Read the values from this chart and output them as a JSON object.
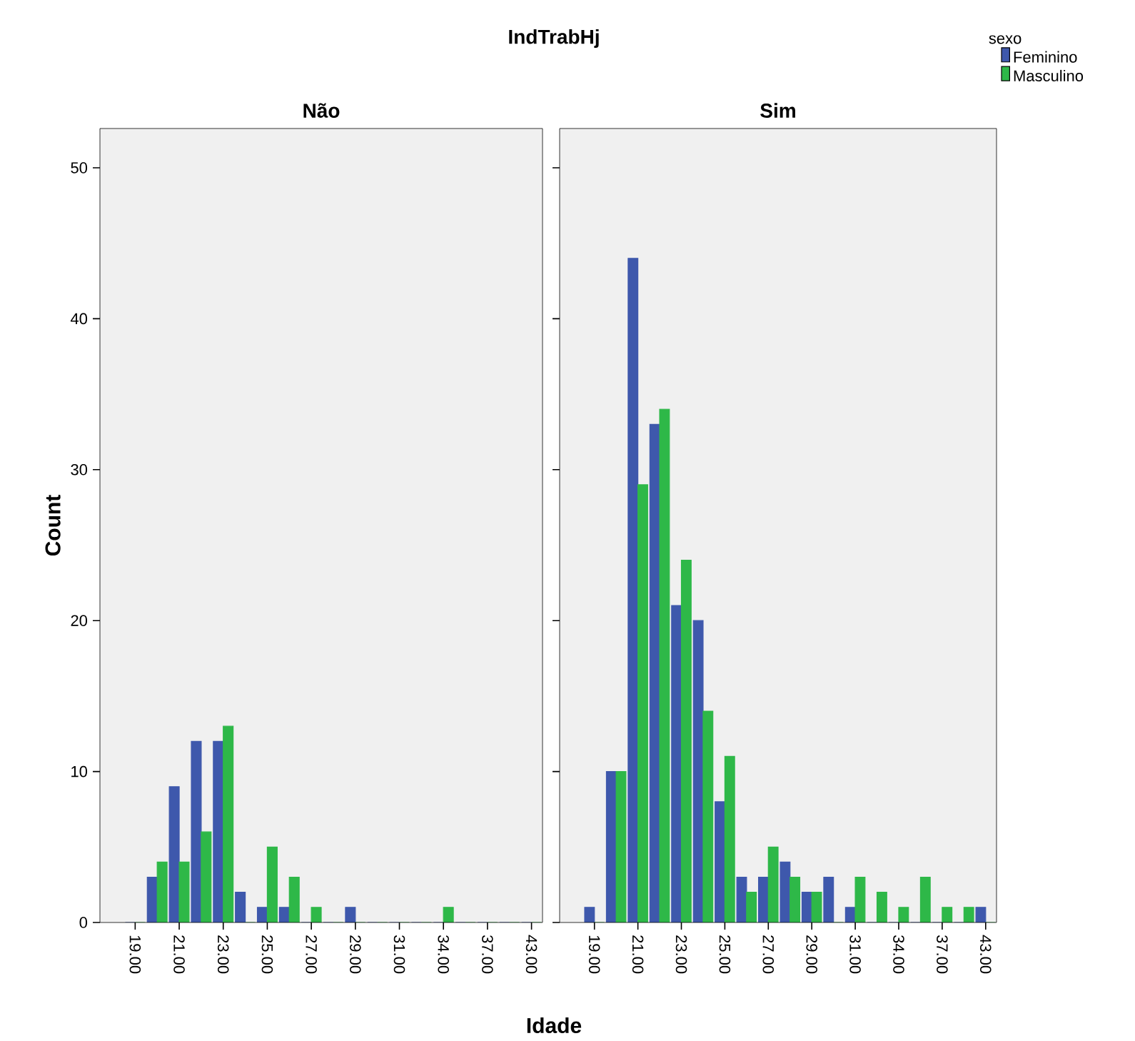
{
  "chart_data": [
    {
      "type": "bar",
      "title": "Não",
      "ylabel": "Count",
      "xlabel": "Idade",
      "annotations": [
        "IndTrabHj"
      ],
      "categories": [
        "19.00",
        null,
        "21.00",
        null,
        "23.00",
        null,
        "25.00",
        null,
        "27.00",
        null,
        "29.00",
        null,
        "31.00",
        null,
        "34.00",
        null,
        "37.00",
        null,
        "43.00"
      ],
      "series": [
        {
          "color": "#3e58ac",
          "values": [
            0,
            3,
            9,
            12,
            12,
            2,
            1,
            1,
            0,
            0,
            1,
            0,
            0,
            0,
            0,
            0,
            0,
            0,
            0
          ]
        },
        {
          "color": "#2eb848",
          "values": [
            0,
            4,
            4,
            6,
            13,
            0,
            5,
            3,
            1,
            0,
            0,
            0,
            0,
            0,
            1,
            0,
            0,
            0,
            0
          ]
        }
      ],
      "ylim": [
        0,
        52.6
      ],
      "yticks": [
        0,
        10,
        20,
        30,
        40,
        50
      ]
    },
    {
      "type": "bar",
      "title": "Sim",
      "legend": "top right",
      "legend_title": "sexo",
      "tick_labels": "x",
      "categories": [
        "19.00",
        null,
        "21.00",
        null,
        "23.00",
        null,
        "25.00",
        null,
        "27.00",
        null,
        "29.00",
        null,
        "31.00",
        null,
        "34.00",
        null,
        "37.00",
        null,
        "43.00"
      ],
      "series": [
        {
          "name": "Feminino",
          "color": "#3e58ac",
          "values": [
            1,
            10,
            44,
            33,
            21,
            20,
            8,
            3,
            3,
            4,
            2,
            3,
            1,
            0,
            0,
            0,
            0,
            0,
            1
          ]
        },
        {
          "name": "Masculino",
          "color": "#2eb848",
          "values": [
            0,
            10,
            29,
            34,
            24,
            14,
            11,
            2,
            5,
            3,
            2,
            0,
            3,
            2,
            1,
            3,
            1,
            1,
            0
          ]
        }
      ],
      "ylim": [
        0,
        52.6
      ],
      "yticks": [
        0,
        10,
        20,
        30,
        40,
        50
      ]
    }
  ]
}
